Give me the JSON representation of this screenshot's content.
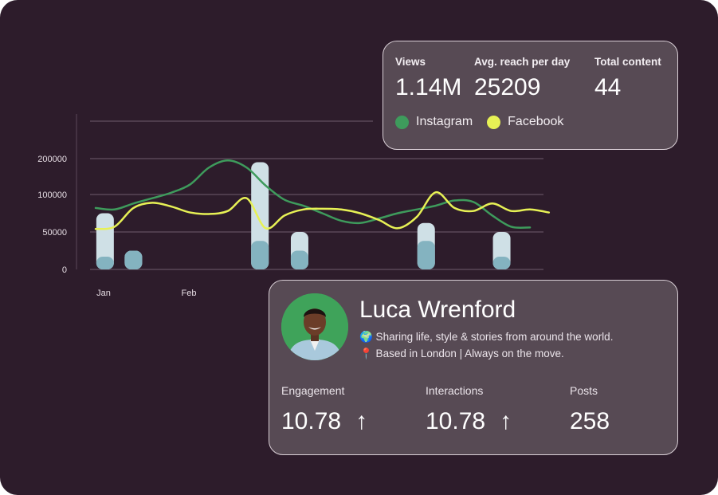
{
  "chart_data": {
    "type": "line",
    "title": "",
    "xlabel": "",
    "ylabel": "",
    "x_tick_labels": [
      "Jan",
      "Feb"
    ],
    "y_tick_labels": [
      "0",
      "50000",
      "100000",
      "200000"
    ],
    "grid": true,
    "legend": [
      "Instagram",
      "Facebook"
    ],
    "series": [
      {
        "name": "Instagram",
        "color": "#3e9b5c",
        "points": [
          [
            0,
            82000
          ],
          [
            1,
            80000
          ],
          [
            2,
            88000
          ],
          [
            3,
            95000
          ],
          [
            4,
            105000
          ],
          [
            5,
            128000
          ],
          [
            6,
            175000
          ],
          [
            7,
            195000
          ],
          [
            8,
            175000
          ],
          [
            9,
            125000
          ],
          [
            10,
            93000
          ],
          [
            11,
            85000
          ],
          [
            12,
            75000
          ],
          [
            13,
            65000
          ],
          [
            14,
            62000
          ],
          [
            15,
            68000
          ],
          [
            16,
            75000
          ],
          [
            17,
            80000
          ],
          [
            18,
            85000
          ],
          [
            19,
            92000
          ],
          [
            20,
            90000
          ],
          [
            21,
            72000
          ],
          [
            22,
            57000
          ],
          [
            23,
            56000
          ]
        ]
      },
      {
        "name": "Facebook",
        "color": "#e7f155",
        "points": [
          [
            0,
            54000
          ],
          [
            1,
            57000
          ],
          [
            2,
            82000
          ],
          [
            3,
            89000
          ],
          [
            4,
            84000
          ],
          [
            5,
            76000
          ],
          [
            6,
            74000
          ],
          [
            7,
            78000
          ],
          [
            8,
            95000
          ],
          [
            9,
            55000
          ],
          [
            10,
            72000
          ],
          [
            11,
            80000
          ],
          [
            12,
            81000
          ],
          [
            13,
            80000
          ],
          [
            14,
            75000
          ],
          [
            15,
            66000
          ],
          [
            16,
            55000
          ],
          [
            17,
            70000
          ],
          [
            18,
            106000
          ],
          [
            19,
            82000
          ],
          [
            20,
            78000
          ],
          [
            21,
            88000
          ],
          [
            22,
            78000
          ],
          [
            23,
            80000
          ],
          [
            24,
            76000
          ]
        ]
      }
    ],
    "bars": [
      {
        "x": 0.5,
        "total": 75000,
        "fill": 17000
      },
      {
        "x": 2.0,
        "total": 25000,
        "fill": 25000
      },
      {
        "x": 8.7,
        "total": 190000,
        "fill": 38000
      },
      {
        "x": 10.8,
        "total": 50000,
        "fill": 25000
      },
      {
        "x": 17.5,
        "total": 62000,
        "fill": 38000
      },
      {
        "x": 21.5,
        "total": 50000,
        "fill": 17000
      }
    ],
    "colors": {
      "bar_light": "#cfe0e6",
      "bar_dark": "#84b3c0",
      "grid": "#5a4758"
    }
  },
  "stats": {
    "views_label": "Views",
    "views_value": "1.14M",
    "reach_label": "Avg. reach per day",
    "reach_value": "25209",
    "content_label": "Total content",
    "content_value": "44",
    "legend_instagram": "Instagram",
    "legend_facebook": "Facebook"
  },
  "profile": {
    "name": "Luca Wrenford",
    "bio_line1": "🌍 Sharing life, style & stories from around the world.",
    "bio_line2": "📍 Based in London | Always on the move.",
    "engagement_label": "Engagement",
    "engagement_value": "10.78",
    "interactions_label": "Interactions",
    "interactions_value": "10.78",
    "posts_label": "Posts",
    "posts_value": "258"
  }
}
